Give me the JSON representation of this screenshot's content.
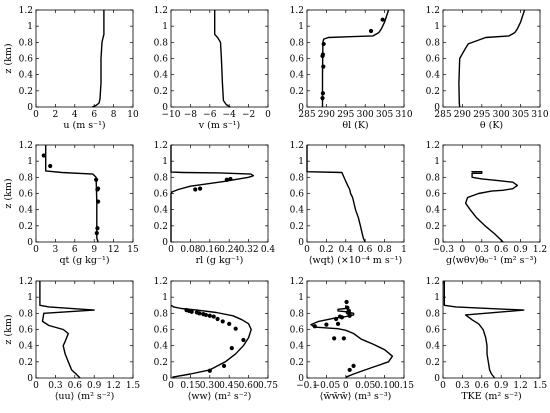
{
  "chart_data": [
    {
      "type": "line",
      "xlabel": "u (m s⁻¹)",
      "ylabel": "z (km)",
      "xlim": [
        0,
        10
      ],
      "ylim": [
        0,
        1.2
      ],
      "xticks": [
        "0",
        "2",
        "4",
        "6",
        "8",
        "10"
      ],
      "yticks": [
        "0",
        "0.2",
        "0.4",
        "0.6",
        "0.8",
        "1",
        "1.2"
      ],
      "series": [
        {
          "kind": "line",
          "x": [
            5.8,
            6.2,
            6.5,
            6.6,
            6.7,
            6.7,
            6.8,
            6.9,
            7.0,
            7.0
          ],
          "y": [
            0.0,
            0.02,
            0.05,
            0.1,
            0.3,
            0.6,
            0.8,
            0.85,
            0.9,
            1.2
          ]
        }
      ]
    },
    {
      "type": "line",
      "xlabel": "v (m s⁻¹)",
      "ylabel": "",
      "xlim": [
        -10,
        0
      ],
      "ylim": [
        0,
        1.2
      ],
      "xticks": [
        "−10",
        "−8",
        "−6",
        "−4",
        "−2",
        "0"
      ],
      "yticks": [
        "0",
        "0.2",
        "0.4",
        "0.6",
        "0.8",
        "1",
        "1.2"
      ],
      "series": [
        {
          "kind": "line",
          "x": [
            -3.9,
            -4.3,
            -4.6,
            -4.7,
            -4.8,
            -4.9,
            -5.2,
            -5.5,
            -5.5
          ],
          "y": [
            0.0,
            0.03,
            0.08,
            0.3,
            0.6,
            0.8,
            0.86,
            0.9,
            1.2
          ]
        }
      ]
    },
    {
      "type": "line",
      "xlabel": "θl (K)",
      "ylabel": "",
      "xlim": [
        285,
        310
      ],
      "ylim": [
        0,
        1.2
      ],
      "xticks": [
        "285",
        "290",
        "295",
        "300",
        "305",
        "310"
      ],
      "yticks": [
        "0",
        "0.2",
        "0.4",
        "0.6",
        "0.8",
        "1",
        "1.2"
      ],
      "series": [
        {
          "kind": "line",
          "x": [
            289.0,
            289.0,
            289.1,
            289.3,
            290.5,
            296.0,
            302.0,
            303.5,
            304.2,
            305.0,
            306.0
          ],
          "y": [
            0.0,
            0.4,
            0.8,
            0.84,
            0.86,
            0.87,
            0.88,
            0.92,
            0.97,
            1.05,
            1.2
          ]
        },
        {
          "kind": "points",
          "x": [
            289.0,
            289.1,
            289.2,
            289.0,
            289.1,
            289.3,
            301.5,
            304.5
          ],
          "y": [
            0.11,
            0.17,
            0.5,
            0.63,
            0.65,
            0.78,
            0.94,
            1.08
          ]
        }
      ]
    },
    {
      "type": "line",
      "xlabel": "θ (K)",
      "ylabel": "",
      "xlim": [
        285,
        310
      ],
      "ylim": [
        0,
        1.2
      ],
      "xticks": [
        "285",
        "290",
        "295",
        "300",
        "305",
        "310"
      ],
      "yticks": [
        "0",
        "0.2",
        "0.4",
        "0.6",
        "0.8",
        "1",
        "1.2"
      ],
      "series": [
        {
          "kind": "line",
          "x": [
            289.3,
            289.2,
            289.1,
            289.3,
            290.5,
            291.5,
            296.0,
            302.0,
            303.5,
            304.2,
            305.0,
            306.0
          ],
          "y": [
            0.0,
            0.05,
            0.3,
            0.6,
            0.7,
            0.78,
            0.86,
            0.88,
            0.92,
            0.97,
            1.05,
            1.2
          ]
        }
      ]
    },
    {
      "type": "line",
      "xlabel": "qt (g kg⁻¹)",
      "ylabel": "z (km)",
      "xlim": [
        0,
        15
      ],
      "ylim": [
        0,
        1.2
      ],
      "xticks": [
        "0",
        "3",
        "6",
        "9",
        "12",
        "15"
      ],
      "yticks": [
        "0",
        "0.2",
        "0.4",
        "0.6",
        "0.8",
        "1",
        "1.2"
      ],
      "series": [
        {
          "kind": "line",
          "x": [
            9.6,
            9.4,
            9.4,
            9.3,
            8.8,
            4.0,
            1.5,
            1.5
          ],
          "y": [
            0.0,
            0.05,
            0.5,
            0.8,
            0.84,
            0.86,
            0.88,
            1.2
          ]
        },
        {
          "kind": "points",
          "x": [
            1.2,
            2.2,
            9.3,
            9.6,
            9.5,
            9.6,
            9.5,
            9.4
          ],
          "y": [
            1.07,
            0.94,
            0.77,
            0.66,
            0.65,
            0.5,
            0.17,
            0.11
          ]
        }
      ]
    },
    {
      "type": "line",
      "xlabel": "rl (g kg⁻¹)",
      "ylabel": "",
      "xlim": [
        0,
        0.4
      ],
      "ylim": [
        0,
        1.2
      ],
      "xticks": [
        "0",
        "0.08",
        "0.16",
        "0.24",
        "0.32",
        "0.4"
      ],
      "yticks": [
        "0",
        "0.2",
        "0.4",
        "0.6",
        "0.8",
        "1",
        "1.2"
      ],
      "series": [
        {
          "kind": "line",
          "x": [
            0.0,
            0.0,
            0.005,
            0.03,
            0.08,
            0.15,
            0.22,
            0.28,
            0.32,
            0.34,
            0.33,
            0.2,
            0.05,
            0.0,
            0.0
          ],
          "y": [
            0.0,
            0.6,
            0.62,
            0.65,
            0.69,
            0.72,
            0.75,
            0.78,
            0.8,
            0.82,
            0.84,
            0.855,
            0.86,
            0.865,
            1.2
          ]
        },
        {
          "kind": "points",
          "x": [
            0.1,
            0.12,
            0.23,
            0.245
          ],
          "y": [
            0.65,
            0.66,
            0.77,
            0.78
          ]
        }
      ]
    },
    {
      "type": "line",
      "xlabel": "⟨wqt⟩ (×10⁻⁴ m s⁻¹)",
      "ylabel": "",
      "xlim": [
        0,
        1
      ],
      "ylim": [
        0,
        1.2
      ],
      "xticks": [
        "0",
        "0.2",
        "0.4",
        "0.6",
        "0.8",
        "1"
      ],
      "yticks": [
        "0",
        "0.2",
        "0.4",
        "0.6",
        "0.8",
        "1",
        "1.2"
      ],
      "series": [
        {
          "kind": "line",
          "x": [
            0.6,
            0.58,
            0.57,
            0.55,
            0.53,
            0.5,
            0.48,
            0.47,
            0.45,
            0.44,
            0.42,
            0.4,
            0.36,
            0.0,
            0.0
          ],
          "y": [
            0.0,
            0.05,
            0.1,
            0.2,
            0.3,
            0.4,
            0.5,
            0.55,
            0.6,
            0.65,
            0.7,
            0.75,
            0.86,
            0.87,
            1.2
          ]
        }
      ]
    },
    {
      "type": "line",
      "xlabel": "g⟨wθv⟩θ₀⁻¹ (m² s⁻³)",
      "ylabel": "",
      "xlim": [
        -0.3,
        1.2
      ],
      "ylim": [
        0,
        1.2
      ],
      "xticks": [
        "−0.3",
        "0",
        "0.3",
        "0.6",
        "0.9",
        "1.2"
      ],
      "yticks": [
        "0",
        "0.2",
        "0.4",
        "0.6",
        "0.8",
        "1",
        "1.2"
      ],
      "series": [
        {
          "kind": "line",
          "x": [
            0.63,
            0.5,
            0.35,
            0.22,
            0.12,
            0.05,
            0.08,
            0.25,
            0.45,
            0.62,
            0.78,
            0.85,
            0.78,
            0.55,
            0.3,
            0.15,
            0.15,
            0.3,
            0.3,
            0.15,
            0.15
          ],
          "y": [
            0.0,
            0.1,
            0.2,
            0.3,
            0.4,
            0.48,
            0.55,
            0.6,
            0.63,
            0.64,
            0.66,
            0.7,
            0.74,
            0.76,
            0.78,
            0.8,
            0.85,
            0.85,
            0.87,
            0.87,
            0.88
          ]
        }
      ]
    },
    {
      "type": "line",
      "xlabel": "⟨uu⟩ (m² s⁻²)",
      "ylabel": "z (km)",
      "xlim": [
        0,
        1.5
      ],
      "ylim": [
        0,
        1.2
      ],
      "xticks": [
        "0",
        "0.3",
        "0.6",
        "0.9",
        "1.2",
        "1.5"
      ],
      "yticks": [
        "0",
        "0.2",
        "0.4",
        "0.6",
        "0.8",
        "1",
        "1.2"
      ],
      "series": [
        {
          "kind": "line",
          "x": [
            0.68,
            0.62,
            0.55,
            0.5,
            0.45,
            0.42,
            0.45,
            0.5,
            0.42,
            0.2,
            0.1,
            0.12,
            0.9,
            0.2,
            0.06,
            0.06
          ],
          "y": [
            0.0,
            0.05,
            0.1,
            0.2,
            0.3,
            0.4,
            0.45,
            0.55,
            0.6,
            0.65,
            0.7,
            0.8,
            0.84,
            0.88,
            0.9,
            1.2
          ]
        }
      ]
    },
    {
      "type": "line",
      "xlabel": "⟨ww⟩ (m² s⁻²)",
      "ylabel": "",
      "xlim": [
        0,
        0.75
      ],
      "ylim": [
        0,
        1.2
      ],
      "xticks": [
        "0",
        "0.15",
        "0.30",
        "0.45",
        "0.60",
        "0.75"
      ],
      "yticks": [
        "0",
        "0.2",
        "0.4",
        "0.6",
        "0.8",
        "1",
        "1.2"
      ],
      "series": [
        {
          "kind": "line",
          "x": [
            0.01,
            0.15,
            0.3,
            0.42,
            0.5,
            0.56,
            0.6,
            0.62,
            0.6,
            0.55,
            0.48,
            0.35,
            0.2,
            0.08,
            0.02,
            0.0
          ],
          "y": [
            0.01,
            0.05,
            0.1,
            0.2,
            0.3,
            0.4,
            0.5,
            0.6,
            0.67,
            0.72,
            0.77,
            0.81,
            0.84,
            0.86,
            0.88,
            0.9
          ]
        },
        {
          "kind": "points",
          "x": [
            0.3,
            0.41,
            0.47,
            0.56,
            0.5,
            0.45,
            0.4,
            0.36,
            0.33,
            0.3,
            0.27,
            0.25,
            0.22,
            0.2,
            0.16,
            0.14,
            0.12
          ],
          "y": [
            0.09,
            0.15,
            0.37,
            0.47,
            0.61,
            0.67,
            0.7,
            0.73,
            0.76,
            0.77,
            0.78,
            0.79,
            0.8,
            0.81,
            0.82,
            0.83,
            0.84
          ]
        }
      ]
    },
    {
      "type": "line",
      "xlabel": "⟨w̃w̃w̃⟩ (m³ s⁻³)",
      "ylabel": "",
      "xlim": [
        -0.1,
        0.15
      ],
      "ylim": [
        0,
        1.2
      ],
      "xticks": [
        "−0.1",
        "−0.05",
        "0",
        "0.05",
        "0.10",
        "0.15"
      ],
      "yticks": [
        "0",
        "0.2",
        "0.4",
        "0.6",
        "0.8",
        "1",
        "1.2"
      ],
      "series": [
        {
          "kind": "line",
          "x": [
            0.0,
            0.02,
            0.05,
            0.08,
            0.11,
            0.12,
            0.1,
            0.07,
            0.04,
            0.02,
            0.0,
            -0.02,
            -0.05,
            -0.08,
            -0.09,
            -0.07,
            -0.03,
            0.0,
            0.02,
            0.02,
            0.0,
            -0.02,
            -0.02,
            0.0,
            0.0,
            0.0
          ],
          "y": [
            0.01,
            0.05,
            0.1,
            0.15,
            0.2,
            0.27,
            0.35,
            0.42,
            0.48,
            0.55,
            0.59,
            0.61,
            0.62,
            0.63,
            0.66,
            0.7,
            0.74,
            0.76,
            0.78,
            0.8,
            0.82,
            0.83,
            0.85,
            0.86,
            0.88,
            0.9
          ]
        },
        {
          "kind": "points",
          "x": [
            0.01,
            0.02,
            -0.005,
            -0.03,
            -0.05,
            -0.08,
            -0.02,
            -0.025,
            -0.01,
            -0.015,
            0.01,
            0.01,
            0.005,
            0.008,
            0.004,
            0.002
          ],
          "y": [
            0.1,
            0.15,
            0.49,
            0.49,
            0.66,
            0.64,
            0.67,
            0.73,
            0.75,
            0.76,
            0.77,
            0.78,
            0.81,
            0.83,
            0.87,
            0.94
          ]
        }
      ]
    },
    {
      "type": "line",
      "xlabel": "TKE (m² s⁻²)",
      "ylabel": "",
      "xlim": [
        0,
        1.5
      ],
      "ylim": [
        0,
        1.2
      ],
      "xticks": [
        "0",
        "0.3",
        "0.6",
        "0.9",
        "1.2",
        "1.5"
      ],
      "yticks": [
        "0",
        "0.2",
        "0.4",
        "0.6",
        "0.8",
        "1",
        "1.2"
      ],
      "series": [
        {
          "kind": "line",
          "x": [
            0.8,
            0.75,
            0.72,
            0.7,
            0.68,
            0.68,
            0.66,
            0.62,
            0.55,
            0.45,
            0.35,
            1.25,
            0.2,
            0.02,
            0.02
          ],
          "y": [
            0.0,
            0.05,
            0.1,
            0.2,
            0.3,
            0.4,
            0.5,
            0.6,
            0.67,
            0.72,
            0.78,
            0.84,
            0.88,
            0.9,
            1.2
          ]
        }
      ]
    }
  ]
}
